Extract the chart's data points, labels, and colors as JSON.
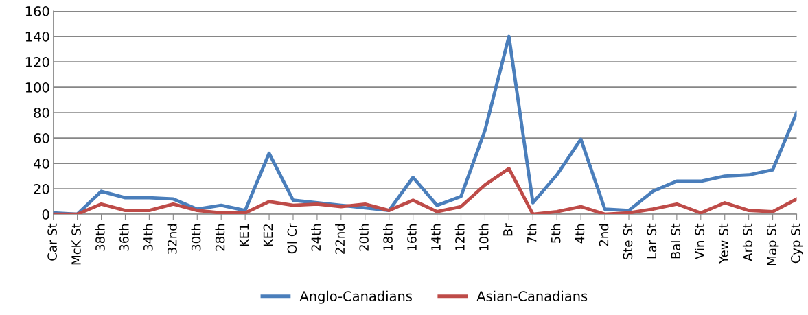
{
  "chart_data": {
    "type": "line",
    "categories": [
      "Car St",
      "McK St",
      "38th",
      "36th",
      "34th",
      "32nd",
      "30th",
      "28th",
      "KE1",
      "KE2",
      "Ol Cr",
      "24th",
      "22nd",
      "20th",
      "18th",
      "16th",
      "14th",
      "12th",
      "10th",
      "Br",
      "7th",
      "5th",
      "4th",
      "2nd",
      "Ste St",
      "Lar St",
      "Bal St",
      "Vin St",
      "Yew St",
      "Arb St",
      "Map St",
      "Cyp St"
    ],
    "series": [
      {
        "name": "Anglo-Canadians",
        "color": "#4a7ebb",
        "values": [
          1,
          0,
          18,
          13,
          13,
          12,
          4,
          7,
          3,
          48,
          11,
          9,
          7,
          5,
          3,
          29,
          7,
          14,
          66,
          140,
          9,
          31,
          59,
          4,
          3,
          18,
          26,
          26,
          30,
          31,
          35,
          80
        ]
      },
      {
        "name": "Asian-Canadians",
        "color": "#be4b48",
        "values": [
          0,
          0,
          8,
          3,
          3,
          8,
          3,
          1,
          1,
          10,
          7,
          8,
          6,
          8,
          3,
          11,
          2,
          6,
          23,
          36,
          0,
          2,
          6,
          0,
          1,
          4,
          8,
          1,
          9,
          3,
          2,
          12
        ]
      }
    ],
    "ylim": [
      0,
      160
    ],
    "yticks": [
      0,
      20,
      40,
      60,
      80,
      100,
      120,
      140,
      160
    ],
    "grid": "y",
    "legend": "bottom",
    "marker": "none",
    "line_style": "solid"
  }
}
